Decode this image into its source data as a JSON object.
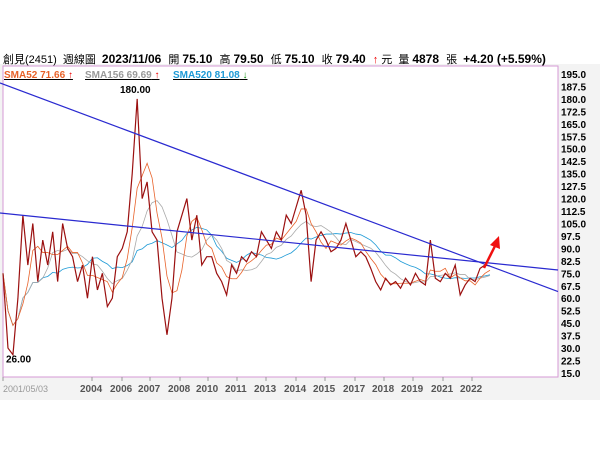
{
  "header": {
    "name": "創見(2451)",
    "period": "週線圖",
    "date": "2023/11/06",
    "open_label": "開",
    "open": "75.10",
    "high_label": "高",
    "high": "79.50",
    "low_label": "低",
    "low": "75.10",
    "close_label": "收",
    "close": "79.40",
    "close_arrow": "↑",
    "unit": "元",
    "vol_label": "量",
    "volume": "4878",
    "vol_unit": "張",
    "change": "+4.20 (+5.59%)"
  },
  "legend": [
    {
      "label": "SMA52 71.66",
      "arrow": "↑",
      "color": "#e8622a",
      "arrow_color": "#e00000"
    },
    {
      "label": "SMA156 69.69",
      "arrow": "↑",
      "color": "#999999",
      "arrow_color": "#e00000"
    },
    {
      "label": "SMA520 81.08",
      "arrow": "↓",
      "color": "#1e9ad6",
      "arrow_color": "#109010"
    }
  ],
  "chart_data": {
    "type": "line",
    "title": "創見(2451) 週線圖",
    "y_ticks": [
      "195.0",
      "187.5",
      "180.0",
      "172.5",
      "165.0",
      "157.5",
      "150.0",
      "142.5",
      "135.0",
      "127.5",
      "120.0",
      "112.5",
      "105.0",
      "97.5",
      "90.0",
      "82.5",
      "75.0",
      "67.5",
      "60.0",
      "52.5",
      "45.0",
      "37.5",
      "30.0",
      "22.5",
      "15.0"
    ],
    "ylim": [
      15,
      195
    ],
    "x_ticks": [
      "2001/05/03",
      "2004",
      "2006",
      "2007",
      "2008",
      "2010",
      "2011",
      "2013",
      "2014",
      "2015",
      "2017",
      "2018",
      "2019",
      "2021",
      "2022"
    ],
    "price": [
      75,
      30,
      26,
      60,
      110,
      80,
      105,
      70,
      95,
      80,
      100,
      70,
      105,
      90,
      85,
      70,
      80,
      60,
      85,
      65,
      75,
      55,
      60,
      85,
      90,
      100,
      135,
      180,
      120,
      130,
      100,
      95,
      60,
      38,
      60,
      100,
      110,
      120,
      95,
      110,
      80,
      85,
      85,
      75,
      70,
      62,
      80,
      75,
      85,
      82,
      88,
      85,
      100,
      95,
      90,
      100,
      95,
      110,
      105,
      115,
      125,
      110,
      70,
      95,
      100,
      95,
      88,
      90,
      95,
      105,
      95,
      85,
      88,
      85,
      78,
      70,
      65,
      72,
      68,
      70,
      66,
      72,
      68,
      75,
      70,
      68,
      95,
      72,
      70,
      75,
      72,
      80,
      62,
      68,
      72,
      70,
      78,
      80,
      79.4
    ],
    "annotations": [
      {
        "text": "180.00",
        "price": 180
      },
      {
        "text": "26.00",
        "price": 26
      }
    ],
    "trendlines": [
      {
        "from": 189.6,
        "to": 64,
        "color": "#2a2ad0"
      },
      {
        "from": 111.3,
        "to": 77,
        "color": "#2a2ad0"
      }
    ]
  }
}
